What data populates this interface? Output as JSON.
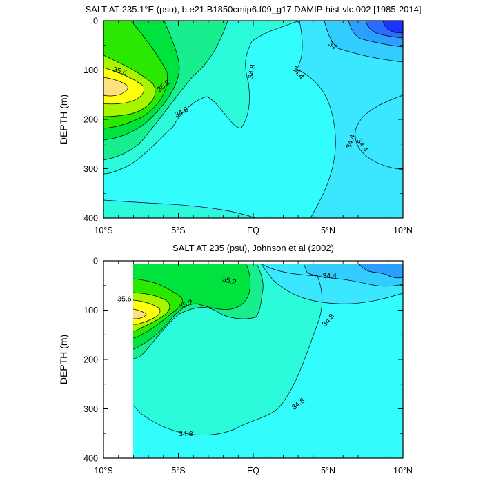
{
  "chart_data": [
    {
      "type": "contour",
      "title": "SALT AT 235.1°E (psu), b.e21.B1850cmip6.f09_g17.DAMIP-hist-vlc.002 [1985-2014]",
      "xlabel": "",
      "ylabel": "DEPTH (m)",
      "x_ticks": [
        "10°S",
        "5°S",
        "EQ",
        "5°N",
        "10°N"
      ],
      "x_tick_values": [
        -10,
        -5,
        0,
        5,
        10
      ],
      "xlim": [
        -10,
        10
      ],
      "y_ticks": [
        "0",
        "100",
        "200",
        "300",
        "400"
      ],
      "y_tick_values": [
        0,
        100,
        200,
        300,
        400
      ],
      "ylim": [
        0,
        400
      ],
      "y_inverted": true,
      "contour_labels": [
        {
          "text": "35.6",
          "lat": -8.9,
          "depth": 102,
          "angle": 15
        },
        {
          "text": "35.2",
          "lat": -6.0,
          "depth": 132,
          "angle": -40
        },
        {
          "text": "34.8",
          "lat": -0.1,
          "depth": 103,
          "angle": -80
        },
        {
          "text": "34.8",
          "lat": -4.8,
          "depth": 185,
          "angle": -28
        },
        {
          "text": "34.4",
          "lat": 3.0,
          "depth": 105,
          "angle": 50
        },
        {
          "text": "34",
          "lat": 5.3,
          "depth": 50,
          "angle": 35
        },
        {
          "text": "34.4",
          "lat": 6.5,
          "depth": 245,
          "angle": -72
        },
        {
          "text": "34.4",
          "lat": 7.3,
          "depth": 252,
          "angle": 55
        }
      ]
    },
    {
      "type": "contour",
      "title": "SALT AT 235 (psu), Johnson et al (2002)",
      "xlabel": "",
      "ylabel": "DEPTH (m)",
      "x_ticks": [
        "10°S",
        "5°S",
        "EQ",
        "5°N",
        "10°N"
      ],
      "x_tick_values": [
        -10,
        -5,
        0,
        5,
        10
      ],
      "xlim": [
        -10,
        10
      ],
      "y_ticks": [
        "0",
        "100",
        "200",
        "300",
        "400"
      ],
      "y_tick_values": [
        0,
        100,
        200,
        300,
        400
      ],
      "ylim": [
        0,
        400
      ],
      "y_inverted": true,
      "contour_labels": [
        {
          "text": "35.2",
          "lat": -1.6,
          "depth": 40,
          "angle": 15
        },
        {
          "text": "35.6",
          "lat": -8.6,
          "depth": 77,
          "angle": 0
        },
        {
          "text": "35.2",
          "lat": -4.5,
          "depth": 88,
          "angle": -22
        },
        {
          "text": "34.8",
          "lat": 5.0,
          "depth": 120,
          "angle": -48
        },
        {
          "text": "34.4",
          "lat": 5.1,
          "depth": 30,
          "angle": 0
        },
        {
          "text": "34.8",
          "lat": 3.0,
          "depth": 290,
          "angle": -38
        },
        {
          "text": "34.8",
          "lat": -4.5,
          "depth": 350,
          "angle": 0
        }
      ]
    }
  ],
  "palette": {
    "p33_6": "#1b34ff",
    "p33_8": "#2b6bff",
    "p34_0": "#2a9fff",
    "p34_2": "#33ccff",
    "p34_4": "#3be6ff",
    "p34_6": "#33fcfd",
    "p34_8": "#2bfadb",
    "p35_0": "#19ee8e",
    "p35_2": "#00e33f",
    "p35_4": "#2ae800",
    "p35_6": "#a8f500",
    "p35_8": "#ffff10",
    "p36_0": "#ffe180",
    "line": "#000000",
    "missing": "#ffffff"
  }
}
